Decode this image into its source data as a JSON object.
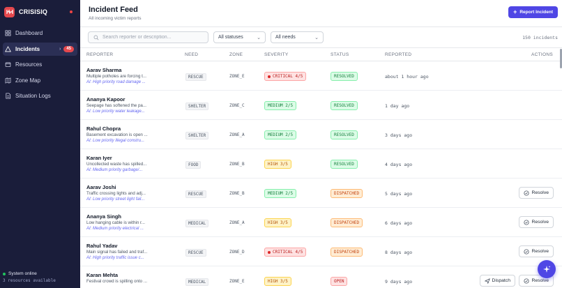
{
  "brand": {
    "name": "CRISISIQ"
  },
  "sidebar": {
    "items": [
      {
        "label": "Dashboard",
        "icon": "dashboard-icon"
      },
      {
        "label": "Incidents",
        "icon": "alert-triangle-icon",
        "badge": "45",
        "chevron": "›"
      },
      {
        "label": "Resources",
        "icon": "box-icon"
      },
      {
        "label": "Zone Map",
        "icon": "map-icon"
      },
      {
        "label": "Situation Logs",
        "icon": "file-text-icon"
      }
    ],
    "status": {
      "label": "System online",
      "sub": "3 resources available"
    }
  },
  "header": {
    "title": "Incident Feed",
    "subtitle": "All incoming victim reports",
    "report_button": "Report Incident"
  },
  "filters": {
    "search_placeholder": "Search reporter or description...",
    "status_select": "All statuses",
    "need_select": "All needs",
    "count": "150 incidents"
  },
  "table": {
    "columns": [
      "REPORTER",
      "NEED",
      "ZONE",
      "SEVERITY",
      "STATUS",
      "REPORTED",
      "ACTIONS"
    ],
    "rows": [
      {
        "name": "Aarav Sharma",
        "desc": "Multiple potholes are forcing t...",
        "ai": "AI: High priority road damage ...",
        "need": "RESCUE",
        "zone": "ZONE_E",
        "severity": "CRITICAL 4/5",
        "severity_level": "critical",
        "status": "RESOLVED",
        "status_level": "resolved",
        "reported": "about 1 hour ago",
        "actions": []
      },
      {
        "name": "Ananya Kapoor",
        "desc": "Seepage has softened the pa...",
        "ai": "AI: Low priority water leakage...",
        "need": "SHELTER",
        "zone": "ZONE_C",
        "severity": "MEDIUM 2/5",
        "severity_level": "medium",
        "status": "RESOLVED",
        "status_level": "resolved",
        "reported": "1 day ago",
        "actions": []
      },
      {
        "name": "Rahul Chopra",
        "desc": "Basement excavation is open ...",
        "ai": "AI: Low priority illegal constru...",
        "need": "SHELTER",
        "zone": "ZONE_A",
        "severity": "MEDIUM 2/5",
        "severity_level": "medium",
        "status": "RESOLVED",
        "status_level": "resolved",
        "reported": "3 days ago",
        "actions": []
      },
      {
        "name": "Karan Iyer",
        "desc": "Uncollected waste has spilled...",
        "ai": "AI: Medium priority garbage/...",
        "need": "FOOD",
        "zone": "ZONE_B",
        "severity": "HIGH 3/5",
        "severity_level": "high",
        "status": "RESOLVED",
        "status_level": "resolved",
        "reported": "4 days ago",
        "actions": []
      },
      {
        "name": "Aarav Joshi",
        "desc": "Traffic crossing lights and adj...",
        "ai": "AI: Low priority street light fail...",
        "need": "RESCUE",
        "zone": "ZONE_B",
        "severity": "MEDIUM 2/5",
        "severity_level": "medium",
        "status": "DISPATCHED",
        "status_level": "dispatched",
        "reported": "5 days ago",
        "actions": [
          "Resolve"
        ]
      },
      {
        "name": "Ananya Singh",
        "desc": "Low hanging cable is within r...",
        "ai": "AI: Medium priority electrical ...",
        "need": "MEDICAL",
        "zone": "ZONE_A",
        "severity": "HIGH 3/5",
        "severity_level": "high",
        "status": "DISPATCHED",
        "status_level": "dispatched",
        "reported": "6 days ago",
        "actions": [
          "Resolve"
        ]
      },
      {
        "name": "Rahul Yadav",
        "desc": "Main signal has failed and traf...",
        "ai": "AI: High priority traffic issue c...",
        "need": "RESCUE",
        "zone": "ZONE_D",
        "severity": "CRITICAL 4/5",
        "severity_level": "critical",
        "status": "DISPATCHED",
        "status_level": "dispatched",
        "reported": "8 days ago",
        "actions": [
          "Resolve"
        ]
      },
      {
        "name": "Karan Mehta",
        "desc": "Festival crowd is spilling onto ...",
        "ai": "",
        "need": "MEDICAL",
        "zone": "ZONE_E",
        "severity": "HIGH 3/5",
        "severity_level": "high",
        "status": "OPEN",
        "status_level": "open",
        "reported": "9 days ago",
        "actions": [
          "Dispatch",
          "Resolve"
        ]
      }
    ]
  },
  "fab": {
    "icon": "sparkles-icon"
  },
  "colors": {
    "accent": "#4f46e5",
    "sidebar_bg": "#1a1d3a",
    "danger": "#e5484d"
  }
}
